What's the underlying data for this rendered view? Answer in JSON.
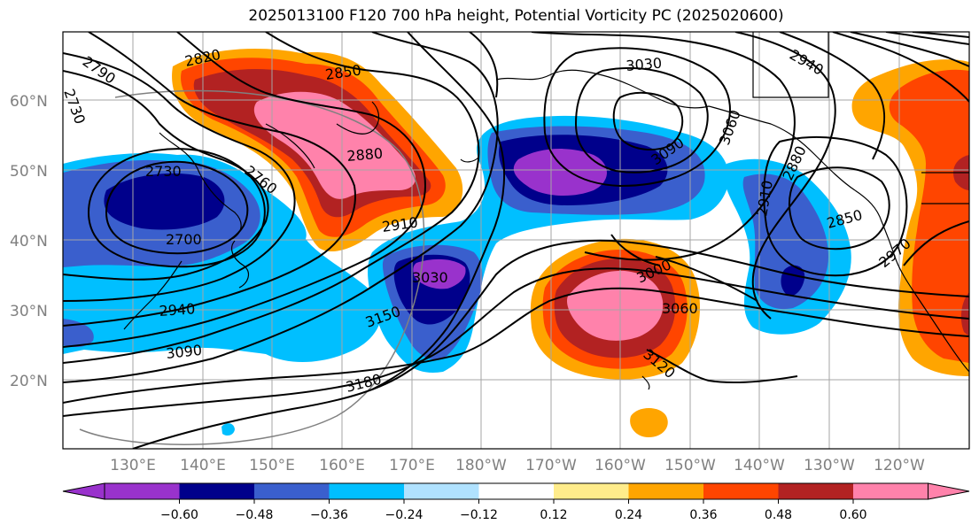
{
  "title": "2025013100 F120 700 hPa height, Potential Vorticity PC (2025020600)",
  "map": {
    "latitude_labels": [
      "60°N",
      "50°N",
      "40°N",
      "30°N",
      "20°N"
    ],
    "longitude_labels": [
      "130°E",
      "140°E",
      "150°E",
      "160°E",
      "170°E",
      "180°W",
      "170°W",
      "160°W",
      "150°W",
      "140°W",
      "130°W",
      "120°W"
    ],
    "contour_labels": [
      "2790",
      "2820",
      "2850",
      "2730",
      "3030",
      "2940",
      "2730",
      "2760",
      "2880",
      "3090",
      "3060",
      "2880",
      "2910",
      "2700",
      "2910",
      "2850",
      "2970",
      "3030",
      "3000",
      "2940",
      "3060",
      "3150",
      "3090",
      "3180",
      "3120",
      "3060"
    ]
  },
  "colorbar": {
    "ticks": [
      "−0.60",
      "−0.48",
      "−0.36",
      "−0.24",
      "−0.12",
      "0.12",
      "0.24",
      "0.36",
      "0.48",
      "0.60"
    ],
    "colors": [
      "#9932cc",
      "#00008b",
      "#3a5fcd",
      "#00bfff",
      "#b0e2ff",
      "#ffffff",
      "#ffec8b",
      "#ffa500",
      "#ff4500",
      "#b22222",
      "#ff82ab"
    ]
  },
  "pv_colors": {
    "very_negative": "#9932cc",
    "strong_negative": "#00008b",
    "negative": "#3a5fcd",
    "weak_negative": "#00bfff",
    "light": "#b0e2ff",
    "weak_positive": "#ffec8b",
    "positive": "#ffa500",
    "strong_positive": "#ff4500",
    "very_positive": "#b22222",
    "extreme_positive": "#ff82ab"
  }
}
